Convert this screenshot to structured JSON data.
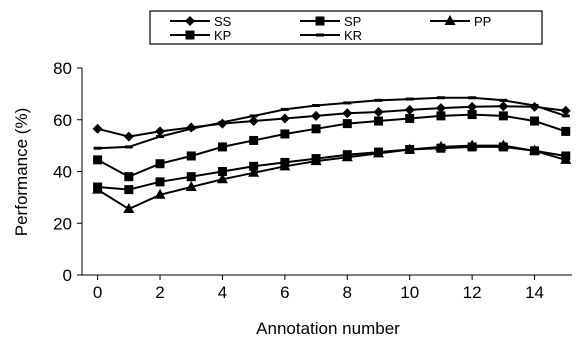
{
  "chart_data": {
    "type": "line",
    "xlabel": "Annotation number",
    "ylabel": "Performance (%)",
    "xlim": [
      -0.5,
      15.2
    ],
    "ylim": [
      0,
      80
    ],
    "x_ticks": [
      0,
      2,
      4,
      6,
      8,
      10,
      12,
      14
    ],
    "y_ticks": [
      0,
      20,
      40,
      60,
      80
    ],
    "grid": false,
    "legend_position": "top",
    "x": [
      0,
      1,
      2,
      3,
      4,
      5,
      6,
      7,
      8,
      9,
      10,
      11,
      12,
      13,
      14,
      15
    ],
    "series": [
      {
        "name": "SS",
        "marker": "diamond",
        "values": [
          56.5,
          53.5,
          55.5,
          57,
          58.5,
          59.5,
          60.5,
          61.5,
          62.5,
          63,
          63.8,
          64.5,
          65,
          65.2,
          65,
          63.5
        ]
      },
      {
        "name": "SP",
        "marker": "square",
        "values": [
          34,
          33,
          36,
          38,
          40,
          42,
          43.5,
          45,
          46.5,
          47.5,
          48.5,
          49,
          49.5,
          49.5,
          48,
          46
        ]
      },
      {
        "name": "PP",
        "marker": "triangle",
        "values": [
          33,
          25.5,
          31,
          34,
          37,
          39.5,
          42,
          44,
          45.5,
          47,
          48.5,
          49.5,
          50,
          50,
          48,
          44.5
        ]
      },
      {
        "name": "KP",
        "marker": "square",
        "values": [
          44.5,
          38,
          43,
          46,
          49.5,
          52,
          54.5,
          56.5,
          58.5,
          59.5,
          60.5,
          61.5,
          62,
          61.5,
          59.5,
          55.5
        ]
      },
      {
        "name": "KR",
        "marker": "dash",
        "values": [
          49,
          49.5,
          53.5,
          56.5,
          59,
          61.5,
          64,
          65.5,
          66.5,
          67.5,
          68,
          68.5,
          68.5,
          67.5,
          65.5,
          61.5
        ]
      }
    ],
    "colors": {
      "line": "#000000",
      "background": "#ffffff"
    }
  }
}
